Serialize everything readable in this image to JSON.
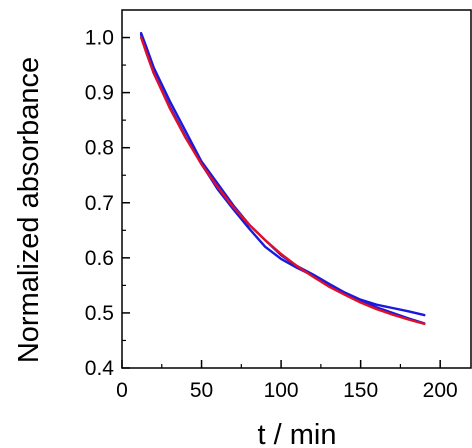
{
  "chart_data": {
    "type": "line",
    "title": "",
    "xlabel": "t / min",
    "ylabel": "Normalized absorbance",
    "xlim": [
      0,
      220
    ],
    "ylim": [
      0.4,
      1.05
    ],
    "xticks": [
      0,
      50,
      100,
      150,
      200
    ],
    "xtick_labels": [
      "0",
      "50",
      "100",
      "150",
      "200"
    ],
    "yticks": [
      0.4,
      0.5,
      0.6,
      0.7,
      0.8,
      0.9,
      1.0
    ],
    "ytick_labels": [
      "0.4",
      "0.5",
      "0.6",
      "0.7",
      "0.8",
      "0.9",
      "1.0"
    ],
    "grid": false,
    "legend": "none",
    "series": [
      {
        "color": "#1a1adb",
        "x": [
          12,
          15,
          20,
          30,
          40,
          50,
          60,
          70,
          80,
          90,
          100,
          110,
          120,
          130,
          140,
          150,
          160,
          170,
          180,
          190
        ],
        "y": [
          1.008,
          0.985,
          0.945,
          0.885,
          0.83,
          0.775,
          0.735,
          0.695,
          0.66,
          0.632,
          0.605,
          0.585,
          0.57,
          0.553,
          0.537,
          0.524,
          0.515,
          0.509,
          0.503,
          0.496
        ]
      },
      {
        "color": "#1a1adb",
        "x": [
          12,
          15,
          20,
          30,
          40,
          50,
          55,
          60,
          70,
          80,
          90,
          100,
          110,
          120,
          130,
          140,
          150,
          160,
          170,
          180,
          190
        ],
        "y": [
          1.005,
          0.975,
          0.935,
          0.875,
          0.82,
          0.77,
          0.748,
          0.725,
          0.688,
          0.653,
          0.62,
          0.598,
          0.582,
          0.568,
          0.55,
          0.535,
          0.522,
          0.51,
          0.5,
          0.49,
          0.481
        ]
      },
      {
        "color": "#e0102a",
        "x": [
          12,
          15,
          20,
          30,
          40,
          50,
          60,
          70,
          80,
          90,
          100,
          110,
          120,
          130,
          140,
          150,
          160,
          170,
          180,
          190
        ],
        "y": [
          1.0,
          0.975,
          0.935,
          0.872,
          0.818,
          0.77,
          0.729,
          0.692,
          0.66,
          0.632,
          0.607,
          0.585,
          0.566,
          0.548,
          0.533,
          0.519,
          0.507,
          0.497,
          0.488,
          0.48
        ]
      }
    ]
  }
}
